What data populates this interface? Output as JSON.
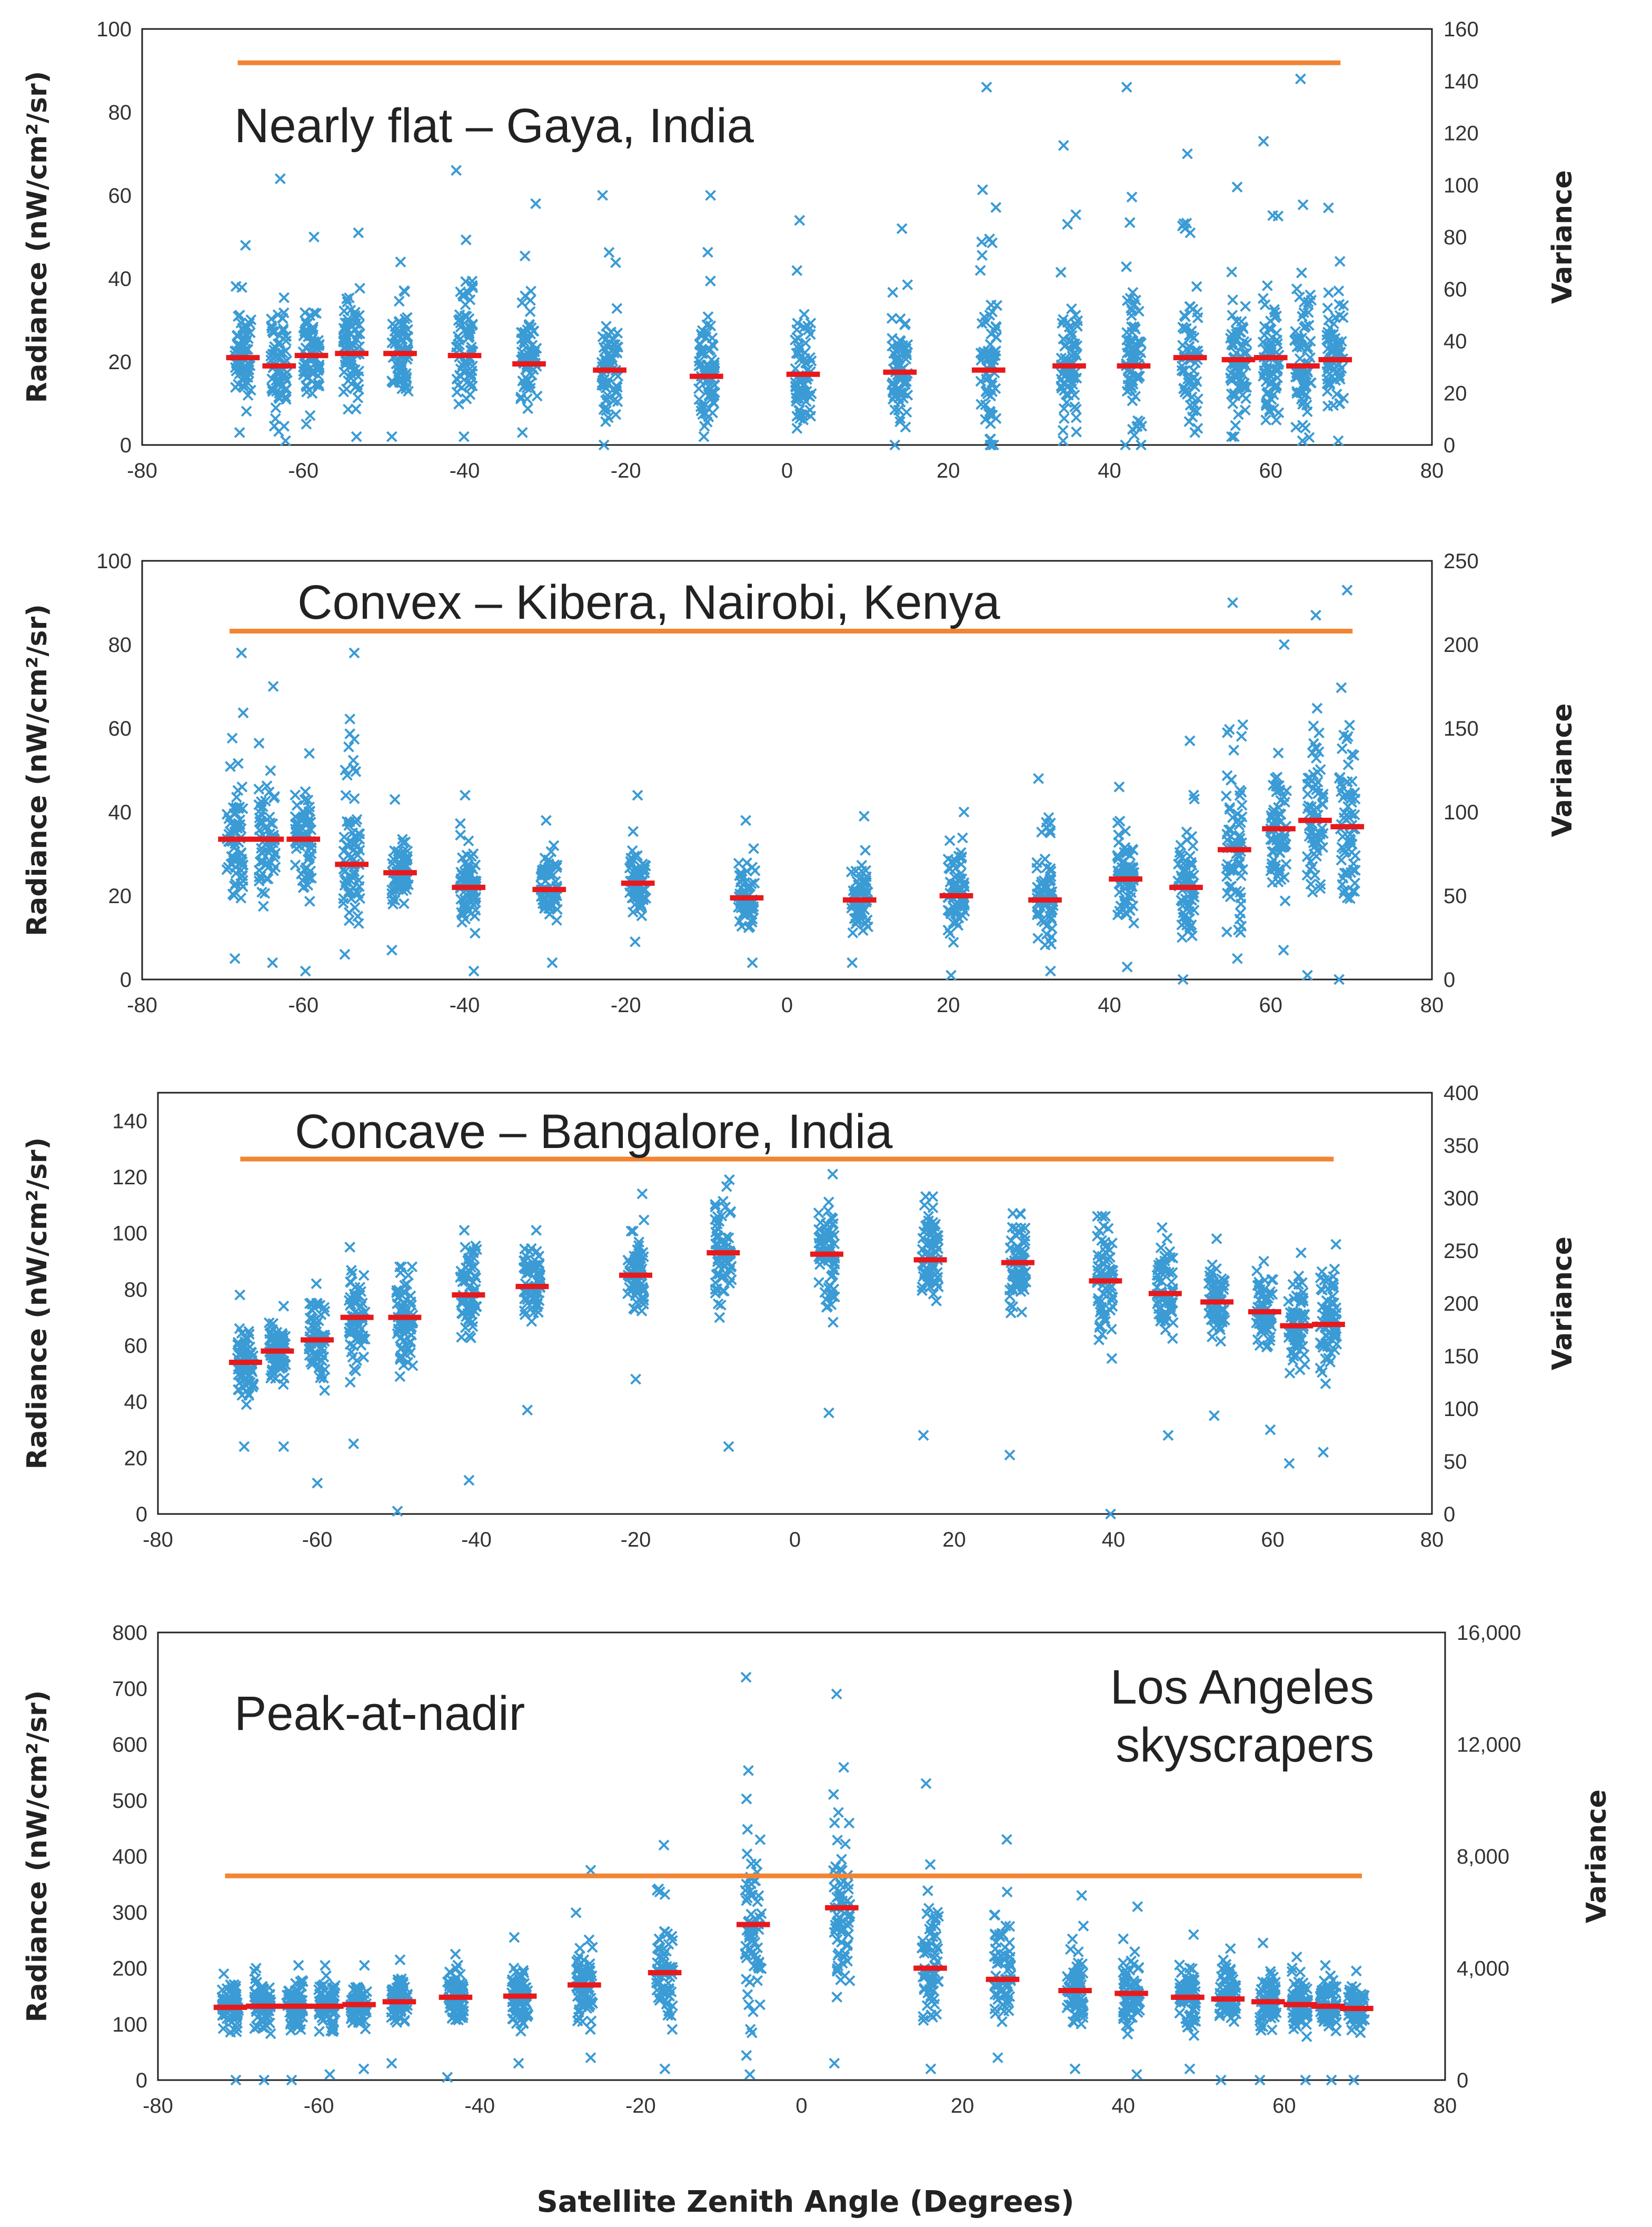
{
  "colors": {
    "points": "#3A9BD5",
    "mean": "#E8191C",
    "variance": "#F28533",
    "frame": "#222222"
  },
  "xlabel": "Satellite Zenith Angle (Degrees)",
  "chart_data": [
    {
      "type": "scatter",
      "title": "Nearly flat – Gaya, India",
      "ylabel": "Radiance (nW/cm²/sr)",
      "y2label": "Variance",
      "xlim": [
        -80,
        80
      ],
      "ylim": [
        0,
        100
      ],
      "y2lim": [
        0,
        160
      ],
      "xticks": [
        "-80",
        "-60",
        "-40",
        "-20",
        "0",
        "20",
        "40",
        "60",
        "80"
      ],
      "yticks": [
        "0",
        "20",
        "40",
        "60",
        "80",
        "100"
      ],
      "y2ticks": [
        "0",
        "20",
        "40",
        "60",
        "80",
        "100",
        "120",
        "140",
        "160"
      ],
      "variance": 147,
      "groups": [
        {
          "x": -67.5,
          "mean": 21,
          "low": 3,
          "high": 48
        },
        {
          "x": -63,
          "mean": 19,
          "low": 1,
          "high": 64
        },
        {
          "x": -59,
          "mean": 21.5,
          "low": 5,
          "high": 50
        },
        {
          "x": -54,
          "mean": 22,
          "low": 2,
          "high": 51
        },
        {
          "x": -48,
          "mean": 22,
          "low": 2,
          "high": 44
        },
        {
          "x": -40,
          "mean": 21.5,
          "low": 2,
          "high": 66
        },
        {
          "x": -32,
          "mean": 19.5,
          "low": 3,
          "high": 58
        },
        {
          "x": -22,
          "mean": 18,
          "low": 0,
          "high": 60
        },
        {
          "x": -10,
          "mean": 16.5,
          "low": 2,
          "high": 60
        },
        {
          "x": 2,
          "mean": 17,
          "low": 4,
          "high": 54
        },
        {
          "x": 14,
          "mean": 17.5,
          "low": 0,
          "high": 52
        },
        {
          "x": 25,
          "mean": 18,
          "low": 0,
          "high": 86
        },
        {
          "x": 35,
          "mean": 19,
          "low": 1,
          "high": 72
        },
        {
          "x": 43,
          "mean": 19,
          "low": 0,
          "high": 86
        },
        {
          "x": 50,
          "mean": 21,
          "low": 3,
          "high": 70
        },
        {
          "x": 56,
          "mean": 20.5,
          "low": 2,
          "high": 62
        },
        {
          "x": 60,
          "mean": 21,
          "low": 6,
          "high": 73
        },
        {
          "x": 64,
          "mean": 19,
          "low": 1,
          "high": 88
        },
        {
          "x": 68,
          "mean": 20.5,
          "low": 1,
          "high": 57
        }
      ]
    },
    {
      "type": "scatter",
      "title": "Convex – Kibera, Nairobi, Kenya",
      "ylabel": "Radiance (nW/cm²/sr)",
      "y2label": "Variance",
      "xlim": [
        -80,
        80
      ],
      "ylim": [
        0,
        100
      ],
      "y2lim": [
        0,
        250
      ],
      "xticks": [
        "-80",
        "-60",
        "-40",
        "-20",
        "0",
        "20",
        "40",
        "60",
        "80"
      ],
      "yticks": [
        "0",
        "20",
        "40",
        "60",
        "80",
        "100"
      ],
      "y2ticks": [
        "0",
        "50",
        "100",
        "150",
        "200",
        "250"
      ],
      "variance": 208,
      "groups": [
        {
          "x": -68.5,
          "mean": 33.5,
          "low": 5,
          "high": 78
        },
        {
          "x": -64.5,
          "mean": 33.5,
          "low": 4,
          "high": 70
        },
        {
          "x": -60,
          "mean": 33.5,
          "low": 2,
          "high": 54
        },
        {
          "x": -54,
          "mean": 27.5,
          "low": 6,
          "high": 78
        },
        {
          "x": -48,
          "mean": 25.5,
          "low": 7,
          "high": 43
        },
        {
          "x": -39.5,
          "mean": 22,
          "low": 2,
          "high": 44
        },
        {
          "x": -29.5,
          "mean": 21.5,
          "low": 4,
          "high": 38
        },
        {
          "x": -18.5,
          "mean": 23,
          "low": 9,
          "high": 44
        },
        {
          "x": -5,
          "mean": 19.5,
          "low": 4,
          "high": 38
        },
        {
          "x": 9,
          "mean": 19,
          "low": 4,
          "high": 39
        },
        {
          "x": 21,
          "mean": 20,
          "low": 1,
          "high": 40
        },
        {
          "x": 32,
          "mean": 19,
          "low": 2,
          "high": 48
        },
        {
          "x": 42,
          "mean": 24,
          "low": 3,
          "high": 46
        },
        {
          "x": 49.5,
          "mean": 22,
          "low": 0,
          "high": 57
        },
        {
          "x": 55.5,
          "mean": 31,
          "low": 5,
          "high": 90
        },
        {
          "x": 61,
          "mean": 36,
          "low": 7,
          "high": 80
        },
        {
          "x": 65.5,
          "mean": 38,
          "low": 1,
          "high": 87
        },
        {
          "x": 69.5,
          "mean": 36.5,
          "low": 0,
          "high": 93
        }
      ]
    },
    {
      "type": "scatter",
      "title": "Concave – Bangalore, India",
      "ylabel": "Radiance (nW/cm²/sr)",
      "y2label": "Variance",
      "xlim": [
        -80,
        80
      ],
      "ylim": [
        0,
        150
      ],
      "y2lim": [
        0,
        400
      ],
      "xticks": [
        "-80",
        "-60",
        "-40",
        "-20",
        "0",
        "20",
        "40",
        "60",
        "80"
      ],
      "yticks": [
        "0",
        "20",
        "40",
        "60",
        "80",
        "100",
        "120",
        "140"
      ],
      "y2ticks": [
        "0",
        "50",
        "100",
        "150",
        "200",
        "250",
        "300",
        "350",
        "400"
      ],
      "variance": 337,
      "groups": [
        {
          "x": -69,
          "mean": 54,
          "low": 24,
          "high": 78
        },
        {
          "x": -65,
          "mean": 58,
          "low": 24,
          "high": 74
        },
        {
          "x": -60,
          "mean": 62,
          "low": 11,
          "high": 82
        },
        {
          "x": -55,
          "mean": 70,
          "low": 25,
          "high": 95
        },
        {
          "x": -49,
          "mean": 70,
          "low": 1,
          "high": 88
        },
        {
          "x": -41,
          "mean": 78,
          "low": 12,
          "high": 101
        },
        {
          "x": -33,
          "mean": 81,
          "low": 37,
          "high": 101
        },
        {
          "x": -20,
          "mean": 85,
          "low": 48,
          "high": 114
        },
        {
          "x": -9,
          "mean": 93,
          "low": 24,
          "high": 119
        },
        {
          "x": 4,
          "mean": 92.5,
          "low": 36,
          "high": 121
        },
        {
          "x": 17,
          "mean": 90.5,
          "low": 28,
          "high": 113
        },
        {
          "x": 28,
          "mean": 89.5,
          "low": 21,
          "high": 107
        },
        {
          "x": 39,
          "mean": 83,
          "low": 0,
          "high": 106
        },
        {
          "x": 46.5,
          "mean": 78.5,
          "low": 28,
          "high": 102
        },
        {
          "x": 53,
          "mean": 75.5,
          "low": 35,
          "high": 98
        },
        {
          "x": 59,
          "mean": 72,
          "low": 30,
          "high": 90
        },
        {
          "x": 63,
          "mean": 67,
          "low": 18,
          "high": 93
        },
        {
          "x": 67,
          "mean": 67.5,
          "low": 22,
          "high": 96
        }
      ]
    },
    {
      "type": "scatter",
      "title": "Peak-at-nadir",
      "subtitle": [
        "Los Angeles",
        "skyscrapers"
      ],
      "ylabel": "Radiance (nW/cm²/sr)",
      "y2label": "Variance",
      "xlim": [
        -80,
        80
      ],
      "ylim": [
        0,
        800
      ],
      "y2lim": [
        0,
        16000
      ],
      "xticks": [
        "-80",
        "-60",
        "-40",
        "-20",
        "0",
        "20",
        "40",
        "60",
        "80"
      ],
      "yticks": [
        "0",
        "100",
        "200",
        "300",
        "400",
        "500",
        "600",
        "700",
        "800"
      ],
      "y2ticks": [
        "0",
        "4,000",
        "8,000",
        "12,000",
        "16,000"
      ],
      "variance": 7300,
      "groups": [
        {
          "x": -71,
          "mean": 130,
          "low": 0,
          "high": 190
        },
        {
          "x": -67,
          "mean": 132,
          "low": 0,
          "high": 200
        },
        {
          "x": -63,
          "mean": 132,
          "low": 0,
          "high": 205
        },
        {
          "x": -59,
          "mean": 132,
          "low": 10,
          "high": 205
        },
        {
          "x": -55,
          "mean": 135,
          "low": 20,
          "high": 205
        },
        {
          "x": -50,
          "mean": 140,
          "low": 30,
          "high": 215
        },
        {
          "x": -43,
          "mean": 148,
          "low": 5,
          "high": 225
        },
        {
          "x": -35,
          "mean": 150,
          "low": 30,
          "high": 255
        },
        {
          "x": -27,
          "mean": 170,
          "low": 40,
          "high": 375
        },
        {
          "x": -17,
          "mean": 192,
          "low": 20,
          "high": 420
        },
        {
          "x": -6,
          "mean": 278,
          "low": 10,
          "high": 720
        },
        {
          "x": 5,
          "mean": 308,
          "low": 30,
          "high": 690
        },
        {
          "x": 16,
          "mean": 200,
          "low": 20,
          "high": 530
        },
        {
          "x": 25,
          "mean": 180,
          "low": 40,
          "high": 430
        },
        {
          "x": 34,
          "mean": 160,
          "low": 20,
          "high": 330
        },
        {
          "x": 41,
          "mean": 155,
          "low": 10,
          "high": 310
        },
        {
          "x": 48,
          "mean": 148,
          "low": 20,
          "high": 260
        },
        {
          "x": 53,
          "mean": 145,
          "low": 0,
          "high": 235
        },
        {
          "x": 58,
          "mean": 140,
          "low": 0,
          "high": 245
        },
        {
          "x": 62,
          "mean": 135,
          "low": 0,
          "high": 220
        },
        {
          "x": 65.5,
          "mean": 132,
          "low": 0,
          "high": 205
        },
        {
          "x": 69,
          "mean": 128,
          "low": 0,
          "high": 195
        }
      ]
    }
  ]
}
